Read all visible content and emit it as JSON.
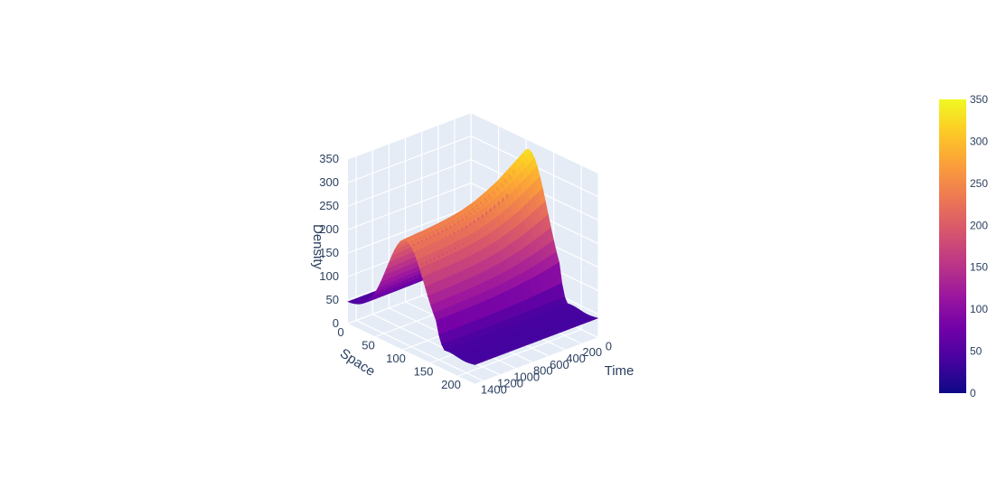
{
  "chart_data": {
    "type": "surface",
    "title": "",
    "xlabel": "Space",
    "ylabel": "Time",
    "zlabel": "Density",
    "x_ticks": [
      "0",
      "50",
      "100",
      "150",
      "200"
    ],
    "y_ticks": [
      "0",
      "200",
      "400",
      "600",
      "800",
      "1000",
      "1200",
      "1400"
    ],
    "z_ticks": [
      "0",
      "50",
      "100",
      "150",
      "200",
      "250",
      "300",
      "350"
    ],
    "xlim": [
      0,
      230
    ],
    "ylim": [
      0,
      1500
    ],
    "zlim": [
      0,
      350
    ],
    "colorscale": "plasma",
    "colorbar": {
      "ticks": [
        "0",
        "50",
        "100",
        "150",
        "200",
        "250",
        "300",
        "350"
      ],
      "range": [
        0,
        350
      ],
      "colors": [
        "#0d0887",
        "#46039f",
        "#7201a8",
        "#9c179e",
        "#bd3786",
        "#d8576b",
        "#ed7953",
        "#fb9f3a",
        "#fdca26",
        "#f0f921"
      ]
    },
    "surface": {
      "time_samples": [
        0,
        150,
        300,
        450,
        600,
        750,
        900,
        1050,
        1200,
        1350,
        1500
      ],
      "space_samples": [
        0,
        25,
        50,
        75,
        100,
        125,
        150,
        175,
        200,
        230
      ],
      "peak_density_by_time": [
        330,
        310,
        290,
        275,
        262,
        253,
        247,
        243,
        240,
        238,
        236
      ],
      "peak_time_start_density": 330,
      "base_density": 45,
      "jam_region_density": 40
    },
    "grid": true
  }
}
